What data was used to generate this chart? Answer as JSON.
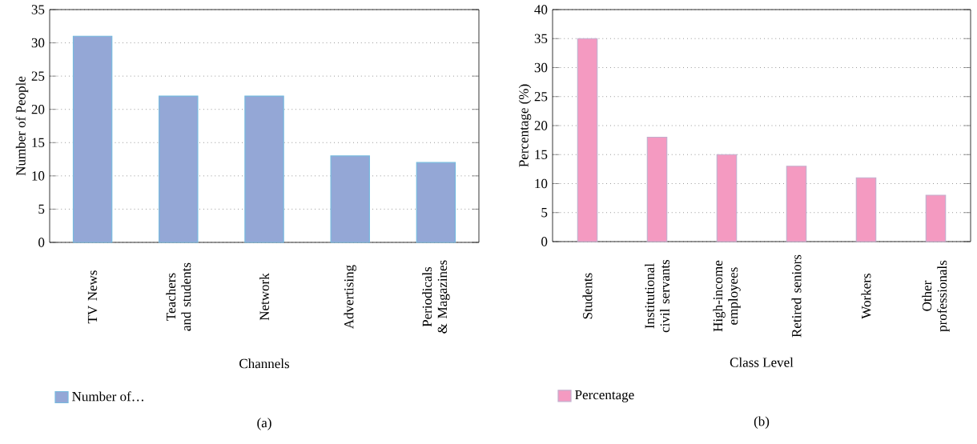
{
  "chart_data": [
    {
      "type": "bar",
      "categories": [
        "TV News",
        "Teachers and students",
        "Network",
        "Advertising",
        "Periodicals & Magazines"
      ],
      "series": [
        {
          "name": "Number of…",
          "color": "#94a7d6",
          "values": [
            31,
            22,
            22,
            13,
            12
          ]
        }
      ],
      "xlabel": "Channels",
      "ylabel": "Number of People",
      "ylim": [
        0,
        35
      ],
      "yticks": [
        0,
        5,
        10,
        15,
        20,
        25,
        30,
        35
      ],
      "grid": "y",
      "legend": "bottom left",
      "annotations": [
        "(a)"
      ]
    },
    {
      "type": "bar",
      "categories": [
        "Students",
        "Institutional civil servants",
        "High-income employees",
        "Retired seniors",
        "Workers",
        "Other professionals"
      ],
      "series": [
        {
          "name": "Percentage",
          "color": "#f49ac1",
          "values": [
            35,
            18,
            15,
            13,
            11,
            8
          ]
        }
      ],
      "xlabel": "Class Level",
      "ylabel": "Percentage (%)",
      "ylim": [
        0,
        40
      ],
      "yticks": [
        0,
        5,
        10,
        15,
        20,
        25,
        30,
        35,
        40
      ],
      "grid": "y",
      "legend": "bottom left",
      "annotations": [
        "(b)"
      ]
    }
  ]
}
